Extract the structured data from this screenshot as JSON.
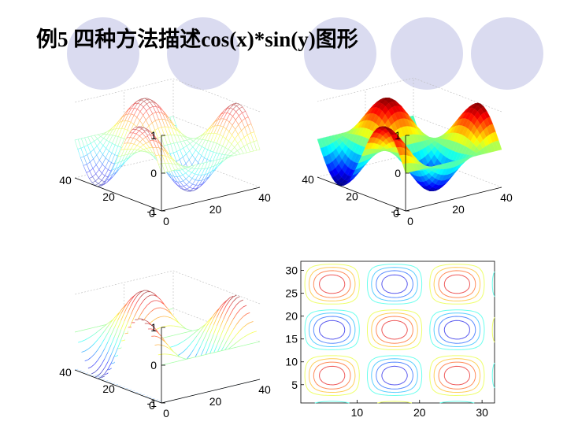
{
  "slide": {
    "title": "例5  四种方法描述cos(x)*sin(y)图形"
  },
  "colors": {
    "decor_circle": "#dadbf0",
    "axes": "#000000",
    "grid": "#bbbbbb"
  },
  "chart_data": [
    {
      "id": "mesh",
      "type": "surface-mesh",
      "function": "cos(x)*sin(y)",
      "xlim": [
        0,
        40
      ],
      "ylim": [
        0,
        40
      ],
      "zlim": [
        -1,
        1
      ],
      "x_ticks": [
        "0",
        "20",
        "40"
      ],
      "y_ticks": [
        "0",
        "20",
        "40"
      ],
      "z_ticks": [
        "-1",
        "0",
        "1"
      ],
      "colormap": "jet"
    },
    {
      "id": "surf",
      "type": "surface-filled",
      "function": "cos(x)*sin(y)",
      "xlim": [
        0,
        40
      ],
      "ylim": [
        0,
        40
      ],
      "zlim": [
        -1,
        1
      ],
      "x_ticks": [
        "0",
        "20",
        "40"
      ],
      "y_ticks": [
        "0",
        "20",
        "40"
      ],
      "z_ticks": [
        "-1",
        "0",
        "1"
      ],
      "colormap": "jet"
    },
    {
      "id": "waterfall",
      "type": "waterfall",
      "function": "cos(x)*sin(y)",
      "xlim": [
        0,
        40
      ],
      "ylim": [
        0,
        40
      ],
      "zlim": [
        -1,
        1
      ],
      "x_ticks": [
        "0",
        "20",
        "40"
      ],
      "y_ticks": [
        "0",
        "20",
        "40"
      ],
      "z_ticks": [
        "-1",
        "0",
        "1"
      ],
      "colormap": "jet"
    },
    {
      "id": "contour",
      "type": "contour",
      "function": "cos(x)*sin(y)",
      "xlim": [
        1,
        32
      ],
      "ylim": [
        1,
        32
      ],
      "x_ticks": [
        "10",
        "20",
        "30"
      ],
      "y_ticks": [
        "5",
        "10",
        "15",
        "20",
        "25",
        "30"
      ],
      "levels": [
        -0.8,
        -0.6,
        -0.4,
        -0.2,
        0.2,
        0.4,
        0.6,
        0.8
      ],
      "colormap": "jet"
    }
  ]
}
